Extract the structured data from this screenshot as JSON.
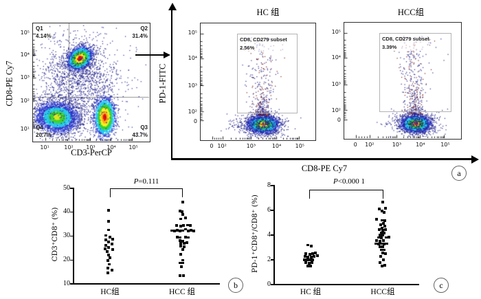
{
  "figure": {
    "type": "flow-cytometry-and-dot-plot-figure",
    "panel_labels": {
      "a": "a",
      "b": "b",
      "c": "c"
    }
  },
  "shared_axis": {
    "ylabel": "PD-1-FITC",
    "xlabel": "CD8-PE Cy7"
  },
  "chart_data": [
    {
      "id": "flow-cd3-cd8",
      "type": "scatter",
      "subtype": "flow-cytometry-density",
      "xlabel": "CD3-PerCP",
      "ylabel": "CD8-PE Cy7",
      "x_ticks": [
        "10¹",
        "10²",
        "10³",
        "10⁴",
        "10⁵"
      ],
      "x_tick_pos": [
        0.105,
        0.308,
        0.494,
        0.669,
        0.855
      ],
      "y_ticks": [
        "10⁵",
        "10⁴",
        "10³",
        "10²",
        "10¹"
      ],
      "y_tick_pos": [
        0.086,
        0.27,
        0.46,
        0.655,
        0.89
      ],
      "quadrant_divider": {
        "x": 0.308,
        "y": 0.627
      },
      "quadrants": [
        {
          "name": "Q1",
          "pct": "4.14%",
          "pos": "top-left"
        },
        {
          "name": "Q2",
          "pct": "31.4%",
          "pos": "top-right"
        },
        {
          "name": "Q3",
          "pct": "43.7%",
          "pos": "bottom-right"
        },
        {
          "name": "Q4",
          "pct": "20.7%",
          "pos": "bottom-left"
        }
      ],
      "populations": [
        {
          "name": "CD3+CD8+",
          "cx": 0.4,
          "cy": 0.295,
          "sx": 0.05,
          "sy": 0.038,
          "rot": -0.65,
          "n": 3400,
          "seed": 11,
          "ramp": [
            [
              0.5,
              "#e8160c"
            ],
            [
              0.95,
              "#f8ef1e"
            ],
            [
              1.4,
              "#38d12b"
            ],
            [
              1.95,
              "#1fc8ea"
            ],
            [
              2.7,
              "#2a39cf"
            ],
            [
              9,
              "#1f1f8a"
            ]
          ]
        },
        {
          "name": "CD3+CD8-",
          "cx": 0.615,
          "cy": 0.795,
          "sx": 0.04,
          "sy": 0.072,
          "rot": 0,
          "n": 3400,
          "seed": 22,
          "ramp": [
            [
              0.4,
              "#e8160c"
            ],
            [
              0.75,
              "#f8b21e"
            ],
            [
              1.1,
              "#f8ef1e"
            ],
            [
              1.5,
              "#38d12b"
            ],
            [
              2.0,
              "#1fc8ea"
            ],
            [
              2.8,
              "#2a39cf"
            ],
            [
              9,
              "#1f1f8a"
            ]
          ]
        },
        {
          "name": "CD3-CD8-",
          "cx": 0.205,
          "cy": 0.795,
          "sx": 0.092,
          "sy": 0.065,
          "rot": 0.1,
          "n": 3800,
          "seed": 33,
          "ramp": [
            [
              0.35,
              "#d9e81f"
            ],
            [
              0.8,
              "#41d32f"
            ],
            [
              1.3,
              "#22c6e6"
            ],
            [
              2.1,
              "#2a39cf"
            ],
            [
              9,
              "#1f1f8a"
            ]
          ]
        },
        {
          "name": "diffuse",
          "cx": 0.33,
          "cy": 0.5,
          "sx": 0.17,
          "sy": 0.21,
          "rot": 0,
          "n": 1000,
          "seed": 44,
          "ramp": [
            [
              9,
              "#23238c"
            ]
          ]
        },
        {
          "name": "diffuse2",
          "cx": 0.47,
          "cy": 0.42,
          "sx": 0.11,
          "sy": 0.14,
          "rot": -0.3,
          "n": 420,
          "seed": 55,
          "ramp": [
            [
              9,
              "#23238c"
            ]
          ]
        },
        {
          "name": "sparse",
          "cx": 0.5,
          "cy": 0.52,
          "sx": 0.3,
          "sy": 0.28,
          "rot": 0,
          "n": 280,
          "seed": 66,
          "ramp": [
            [
              9,
              "#26269a"
            ]
          ]
        }
      ]
    },
    {
      "id": "flow-hc",
      "type": "scatter",
      "subtype": "flow-cytometry-density",
      "title": "HC 组",
      "gate": {
        "label": "CD8, CD279 subset",
        "pct": "2.56%"
      },
      "x_ticks": [
        "0",
        "10²",
        "10³",
        "10⁴",
        "10⁵"
      ],
      "x_tick_pos": [
        0.1,
        0.19,
        0.44,
        0.66,
        0.86
      ],
      "y_ticks": [
        "10⁵",
        "10⁴",
        "10³",
        "10²",
        "0"
      ],
      "y_tick_pos": [
        0.087,
        0.302,
        0.535,
        0.756,
        0.837
      ],
      "populations": [
        {
          "name": "CD8+ main",
          "cx": 0.545,
          "cy": 0.868,
          "sx": 0.065,
          "sy": 0.034,
          "rot": 0,
          "n": 3000,
          "seed": 7,
          "ramp": [
            [
              0.35,
              "#f07818"
            ],
            [
              0.62,
              "#f4e81c"
            ],
            [
              1.1,
              "#35d12c"
            ],
            [
              1.7,
              "#1fc8ea"
            ],
            [
              2.4,
              "#2a39cf"
            ],
            [
              9,
              "#1f1f8a"
            ]
          ]
        },
        {
          "name": "halo",
          "cx": 0.545,
          "cy": 0.865,
          "sx": 0.1,
          "sy": 0.055,
          "rot": 0,
          "n": 550,
          "seed": 8,
          "ramp": [
            [
              9,
              "#23238c"
            ]
          ]
        },
        {
          "type": "tail",
          "name": "PD-1+ tail",
          "cx": 0.535,
          "sx": 0.035,
          "sxTop": 0.1,
          "y0": 0.79,
          "y1": 0.12,
          "p": 2.2,
          "n": 380,
          "seed": 9,
          "colors": [
            "#23238c",
            "#23238c",
            "#7a1d12"
          ]
        },
        {
          "name": "strays",
          "cx": 0.3,
          "cy": 0.865,
          "sx": 0.05,
          "sy": 0.025,
          "rot": 0,
          "n": 28,
          "seed": 10,
          "ramp": [
            [
              9,
              "#23238c"
            ]
          ]
        }
      ]
    },
    {
      "id": "flow-hcc",
      "type": "scatter",
      "subtype": "flow-cytometry-density",
      "title": "HCC组",
      "gate": {
        "label": "CD8, CD279 subset",
        "pct": "3.39%"
      },
      "x_ticks": [
        "0",
        "10²",
        "10³",
        "10⁴",
        "10⁵"
      ],
      "x_tick_pos": [
        0.1,
        0.22,
        0.45,
        0.65,
        0.86
      ],
      "y_ticks": [
        "10⁵",
        "10⁴",
        "10³",
        "10²",
        "0"
      ],
      "y_tick_pos": [
        0.087,
        0.302,
        0.535,
        0.756,
        0.837
      ],
      "populations": [
        {
          "name": "CD8+ main",
          "cx": 0.615,
          "cy": 0.872,
          "sx": 0.06,
          "sy": 0.034,
          "rot": 0,
          "n": 3000,
          "seed": 17,
          "ramp": [
            [
              0.35,
              "#f03c14"
            ],
            [
              0.62,
              "#f4e81c"
            ],
            [
              1.1,
              "#35d12c"
            ],
            [
              1.7,
              "#1fc8ea"
            ],
            [
              2.4,
              "#2a39cf"
            ],
            [
              9,
              "#1f1f8a"
            ]
          ]
        },
        {
          "name": "halo",
          "cx": 0.615,
          "cy": 0.868,
          "sx": 0.095,
          "sy": 0.055,
          "rot": 0,
          "n": 520,
          "seed": 18,
          "ramp": [
            [
              9,
              "#23238c"
            ]
          ]
        },
        {
          "type": "tail",
          "name": "PD-1+ tail",
          "cx": 0.6,
          "sx": 0.035,
          "sxTop": 0.085,
          "y0": 0.79,
          "y1": 0.11,
          "p": 2.0,
          "n": 420,
          "seed": 19,
          "colors": [
            "#23238c",
            "#23238c",
            "#7a1d12"
          ]
        },
        {
          "name": "strays",
          "cx": 0.38,
          "cy": 0.87,
          "sx": 0.04,
          "sy": 0.02,
          "rot": 0,
          "n": 14,
          "seed": 20,
          "ramp": [
            [
              9,
              "#23238c"
            ]
          ]
        }
      ]
    },
    {
      "id": "panel-b",
      "type": "scatter",
      "panel_letter": "b",
      "ylabel": "CD3⁺CD8⁺ (%)",
      "ylim": [
        10,
        50
      ],
      "y_ticks": [
        10,
        20,
        30,
        40,
        50
      ],
      "p_label": {
        "symbol": "P",
        "rest": "=0.111"
      },
      "groups": [
        {
          "label": "HC组",
          "points": [
            [
              -2,
              40.9
            ],
            [
              -2,
              36.1
            ],
            [
              -2,
              32.6
            ],
            [
              -6,
              30.3
            ],
            [
              0,
              29.6
            ],
            [
              4,
              28.8
            ],
            [
              -6,
              28.4
            ],
            [
              -2,
              27.5
            ],
            [
              3,
              26.7
            ],
            [
              -6,
              26.1
            ],
            [
              -2,
              25.2
            ],
            [
              -7,
              24.7
            ],
            [
              4,
              24.3
            ],
            [
              -4,
              23.5
            ],
            [
              -2,
              22.1
            ],
            [
              0,
              20.9
            ],
            [
              -3,
              19.8
            ],
            [
              -1,
              18.2
            ],
            [
              -3,
              16.6
            ],
            [
              3,
              15.7
            ],
            [
              -3,
              14.7
            ]
          ]
        },
        {
          "label": "HCC 组",
          "points": [
            [
              1,
              44.2
            ],
            [
              -3,
              40.6
            ],
            [
              0,
              40.3
            ],
            [
              1,
              39.0
            ],
            [
              5,
              37.7
            ],
            [
              -2,
              37.2
            ],
            [
              -8,
              34.4
            ],
            [
              -2,
              34.2
            ],
            [
              2,
              34.4
            ],
            [
              8,
              34.6
            ],
            [
              12,
              34.4
            ],
            [
              -15,
              32.3
            ],
            [
              -11,
              32.2
            ],
            [
              -7,
              32.4
            ],
            [
              -3,
              32.2
            ],
            [
              1,
              32.3
            ],
            [
              5,
              32.9
            ],
            [
              9,
              32.2
            ],
            [
              13,
              32.4
            ],
            [
              17,
              32.2
            ],
            [
              -7,
              29.6
            ],
            [
              -3,
              29.4
            ],
            [
              5,
              29.6
            ],
            [
              9,
              29.4
            ],
            [
              -3,
              28.1
            ],
            [
              1,
              27.9
            ],
            [
              7,
              27.2
            ],
            [
              -2,
              26.9
            ],
            [
              3,
              26.9
            ],
            [
              -2,
              25.8
            ],
            [
              3,
              25.6
            ],
            [
              1,
              24.3
            ],
            [
              -2,
              22.3
            ],
            [
              1,
              19.9
            ],
            [
              -3,
              18.8
            ],
            [
              1,
              18.8
            ],
            [
              -1,
              17.2
            ],
            [
              -3,
              13.4
            ],
            [
              2,
              13.4
            ]
          ]
        }
      ]
    },
    {
      "id": "panel-c",
      "type": "scatter",
      "panel_letter": "c",
      "ylabel": "PD-1⁺CD8⁺/CD8⁺ (%)",
      "ylim": [
        0,
        8
      ],
      "y_ticks": [
        0,
        2,
        4,
        6,
        8
      ],
      "p_label": {
        "symbol": "P",
        "rest": "<0.000 1"
      },
      "groups": [
        {
          "label": "HC 组",
          "points": [
            [
              -4,
              3.2
            ],
            [
              1,
              3.1
            ],
            [
              -7,
              2.5
            ],
            [
              -1,
              2.45
            ],
            [
              3,
              2.5
            ],
            [
              7,
              2.55
            ],
            [
              -8,
              2.26
            ],
            [
              -4,
              2.22
            ],
            [
              1,
              2.22
            ],
            [
              5,
              2.26
            ],
            [
              10,
              2.32
            ],
            [
              -9,
              2.02
            ],
            [
              -5,
              1.98
            ],
            [
              -1,
              1.98
            ],
            [
              3,
              2.02
            ],
            [
              -7,
              1.76
            ],
            [
              -2,
              1.74
            ],
            [
              2,
              1.76
            ],
            [
              -4,
              1.52
            ],
            [
              0,
              1.5
            ]
          ]
        },
        {
          "label": "HCC组",
          "points": [
            [
              0,
              6.65
            ],
            [
              -5,
              6.1
            ],
            [
              -1,
              5.96
            ],
            [
              4,
              6.15
            ],
            [
              2,
              5.85
            ],
            [
              -9,
              5.28
            ],
            [
              -1,
              5.2
            ],
            [
              3,
              5.15
            ],
            [
              1,
              4.94
            ],
            [
              -3,
              4.85
            ],
            [
              3,
              4.72
            ],
            [
              -1,
              4.54
            ],
            [
              -5,
              4.43
            ],
            [
              0,
              4.39
            ],
            [
              4,
              4.43
            ],
            [
              -2,
              4.17
            ],
            [
              2,
              4.17
            ],
            [
              -4,
              3.98
            ],
            [
              0,
              3.98
            ],
            [
              -6,
              3.8
            ],
            [
              -2,
              3.76
            ],
            [
              5,
              3.8
            ],
            [
              9,
              3.83
            ],
            [
              -9,
              3.56
            ],
            [
              -4,
              3.52
            ],
            [
              1,
              3.56
            ],
            [
              -10,
              3.31
            ],
            [
              -6,
              3.28
            ],
            [
              -2,
              3.31
            ],
            [
              2,
              3.28
            ],
            [
              6,
              3.31
            ],
            [
              -4,
              3.06
            ],
            [
              0,
              3.06
            ],
            [
              -2,
              2.81
            ],
            [
              2,
              2.81
            ],
            [
              0,
              2.54
            ],
            [
              4,
              2.5
            ],
            [
              -3,
              2.26
            ],
            [
              1,
              2.02
            ],
            [
              -4,
              1.76
            ],
            [
              -1,
              1.52
            ],
            [
              3,
              1.56
            ]
          ]
        }
      ]
    }
  ]
}
